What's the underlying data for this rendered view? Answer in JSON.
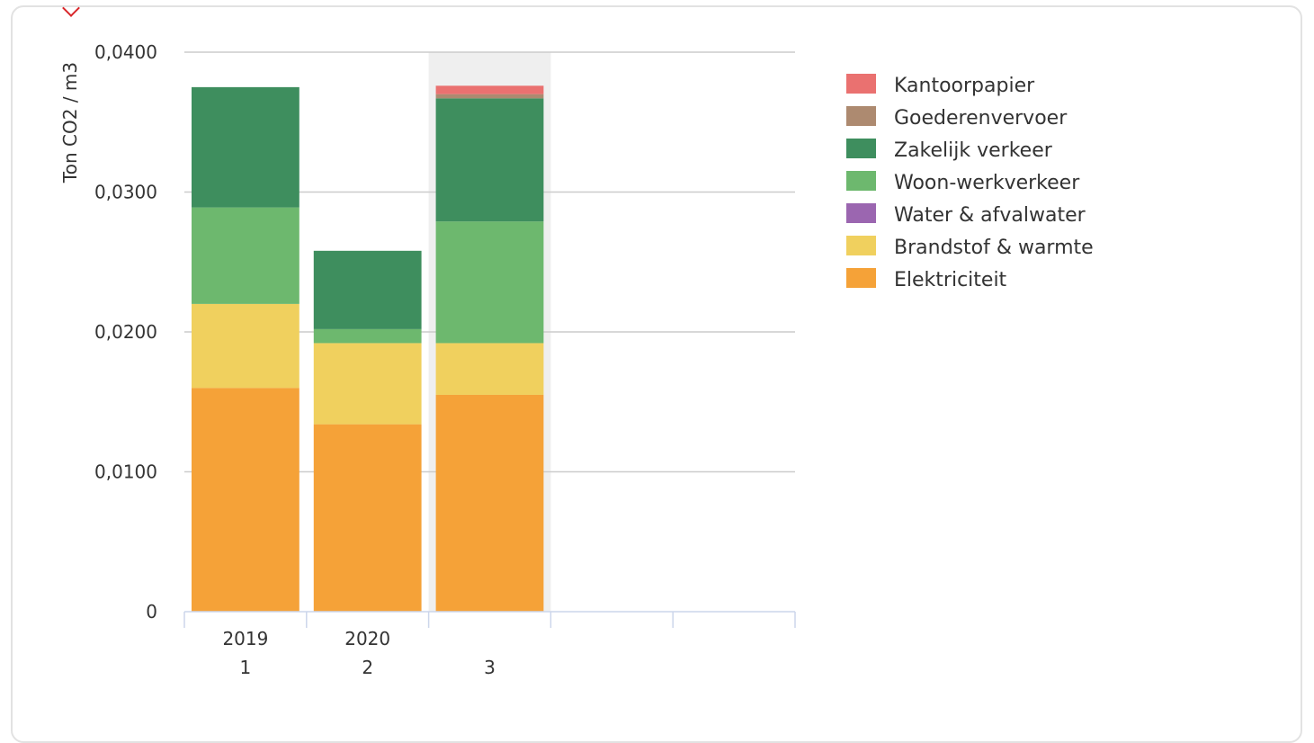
{
  "chart_data": {
    "type": "bar",
    "stacked": true,
    "ylabel": "Ton CO2 / m3",
    "ylim": [
      0,
      0.04
    ],
    "y_ticks": [
      "0",
      "0,0100",
      "0,0200",
      "0,0300",
      "0,0400"
    ],
    "y_tick_values": [
      0,
      0.01,
      0.02,
      0.03,
      0.04
    ],
    "grid": true,
    "legend_position": "right",
    "categories": [
      {
        "top": "2019",
        "bottom": "1"
      },
      {
        "top": "2020",
        "bottom": "2"
      },
      {
        "top": "",
        "bottom": "3"
      },
      {
        "top": "",
        "bottom": ""
      },
      {
        "top": "",
        "bottom": ""
      }
    ],
    "highlighted_category_index": 2,
    "series": [
      {
        "name": "Elektriciteit",
        "color": "#f5a238",
        "values": [
          0.016,
          0.0134,
          0.0155,
          null,
          null
        ]
      },
      {
        "name": "Brandstof & warmte",
        "color": "#f0d05e",
        "values": [
          0.006,
          0.0058,
          0.0037,
          null,
          null
        ]
      },
      {
        "name": "Water & afvalwater",
        "color": "#9b66b0",
        "values": [
          0,
          0,
          0,
          null,
          null
        ]
      },
      {
        "name": "Woon-werkverkeer",
        "color": "#6db86e",
        "values": [
          0.0069,
          0.001,
          0.0087,
          null,
          null
        ]
      },
      {
        "name": "Zakelijk verkeer",
        "color": "#3e8e5e",
        "values": [
          0.0086,
          0.0056,
          0.0088,
          null,
          null
        ]
      },
      {
        "name": "Goederenvervoer",
        "color": "#ad8a70",
        "values": [
          0,
          0,
          0.0003,
          null,
          null
        ]
      },
      {
        "name": "Kantoorpapier",
        "color": "#ea7170",
        "values": [
          0,
          0,
          0.0006,
          null,
          null
        ]
      }
    ]
  }
}
